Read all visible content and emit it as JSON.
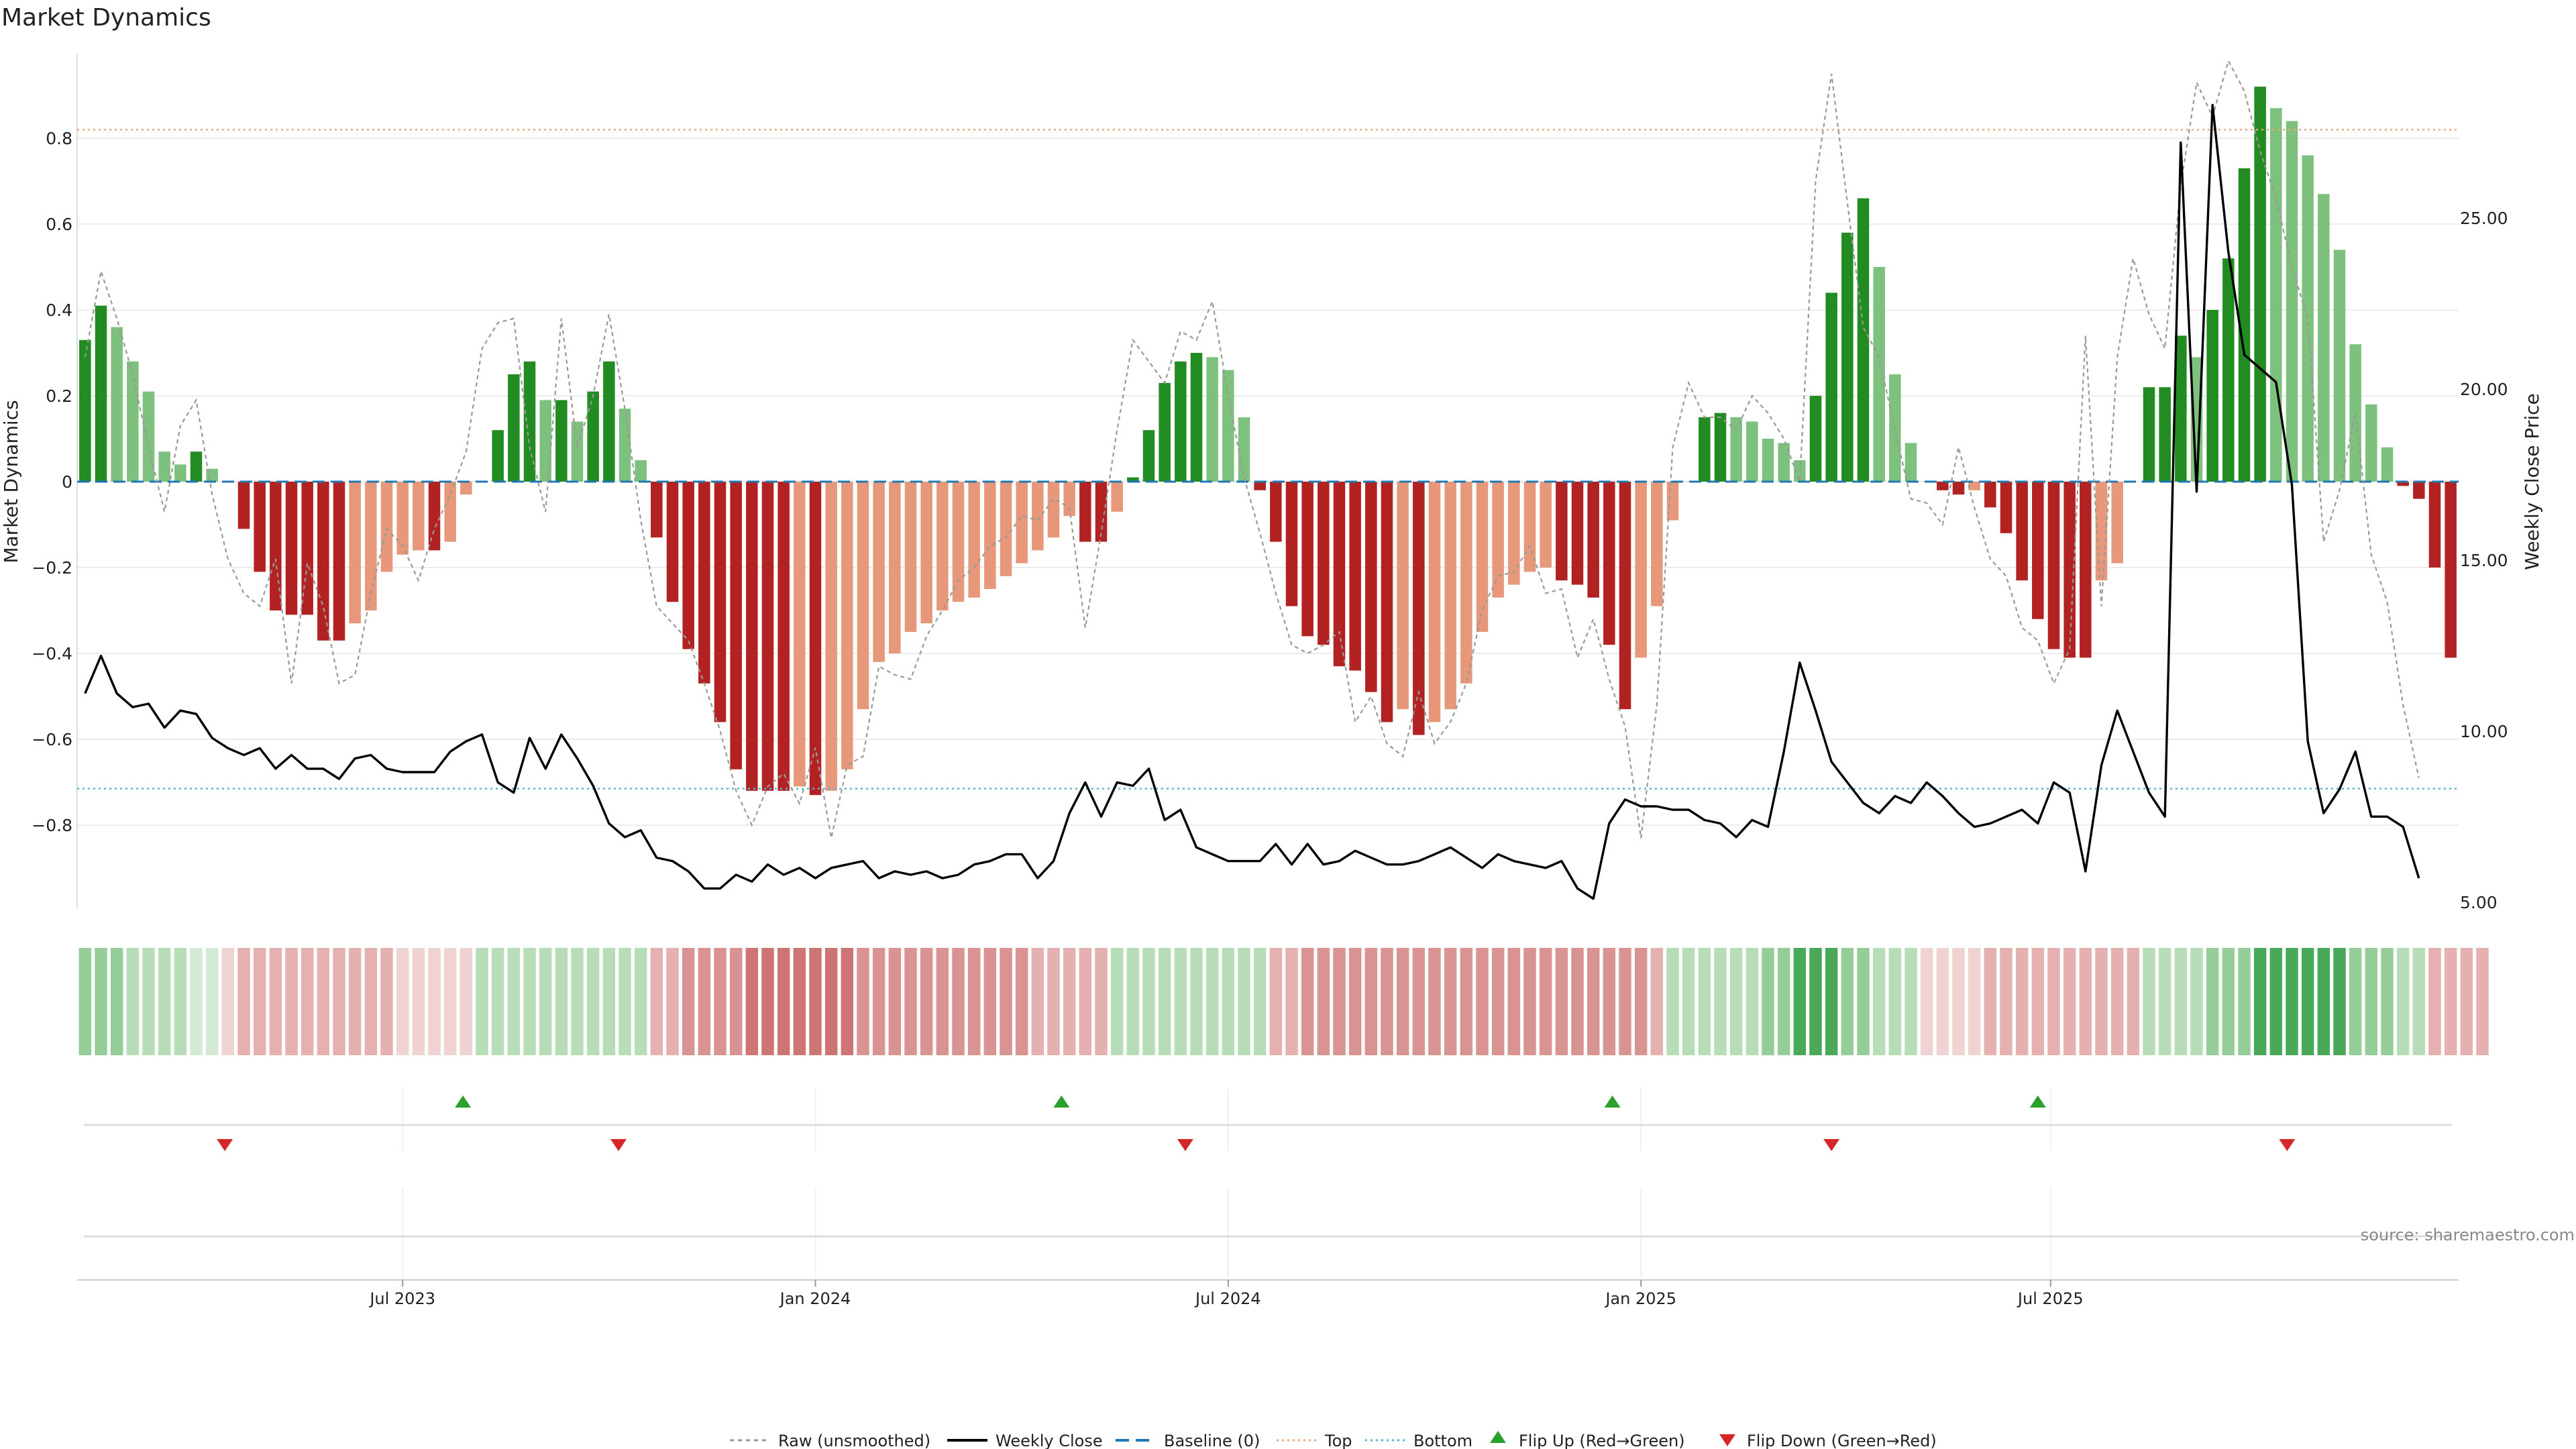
{
  "chart_data": {
    "type": "bar",
    "title": "Market Dynamics",
    "ylabel_left": "Market Dynamics",
    "ylabel_right": "Weekly Close Price",
    "ylim_left": [
      -1.0,
      0.99
    ],
    "ylim_right": [
      4.8,
      29.8
    ],
    "yticks_left": [
      "0.8",
      "0.6",
      "0.4",
      "0.2",
      "0",
      "−0.2",
      "−0.4",
      "−0.6",
      "−0.8"
    ],
    "yticks_right": [
      "25.00",
      "20.00",
      "15.00",
      "10.00",
      "5.00"
    ],
    "x_date_labels": [
      "Jul 2023",
      "Jan 2024",
      "Jul 2024",
      "Jan 2025",
      "Jul 2025"
    ],
    "x_date_label_weeks": [
      20.5,
      46.5,
      72.5,
      98.5,
      124.3
    ],
    "top_level": 0.82,
    "bottom_level": -0.715,
    "baseline": 0,
    "bars": [
      0.33,
      0.41,
      0.36,
      0.28,
      0.21,
      0.07,
      0.04,
      0.07,
      0.03,
      0,
      -0.11,
      -0.21,
      -0.3,
      -0.31,
      -0.31,
      -0.37,
      -0.37,
      -0.33,
      -0.3,
      -0.21,
      -0.17,
      -0.16,
      -0.16,
      -0.14,
      -0.03,
      0,
      0.12,
      0.25,
      0.28,
      0.19,
      0.19,
      0.14,
      0.21,
      0.28,
      0.17,
      0.05,
      -0.13,
      -0.28,
      -0.39,
      -0.47,
      -0.56,
      -0.67,
      -0.72,
      -0.72,
      -0.72,
      -0.71,
      -0.73,
      -0.72,
      -0.67,
      -0.53,
      -0.42,
      -0.4,
      -0.35,
      -0.33,
      -0.3,
      -0.28,
      -0.27,
      -0.25,
      -0.22,
      -0.19,
      -0.16,
      -0.13,
      -0.08,
      -0.14,
      -0.14,
      -0.07,
      0.01,
      0.12,
      0.23,
      0.28,
      0.3,
      0.29,
      0.26,
      0.15,
      -0.02,
      -0.14,
      -0.29,
      -0.36,
      -0.38,
      -0.43,
      -0.44,
      -0.49,
      -0.56,
      -0.53,
      -0.59,
      -0.56,
      -0.53,
      -0.47,
      -0.35,
      -0.27,
      -0.24,
      -0.21,
      -0.2,
      -0.23,
      -0.24,
      -0.27,
      -0.38,
      -0.53,
      -0.41,
      -0.29,
      -0.09,
      0,
      0.15,
      0.16,
      0.15,
      0.14,
      0.1,
      0.09,
      0.05,
      0.2,
      0.44,
      0.58,
      0.66,
      0.5,
      0.25,
      0.09,
      0,
      -0.02,
      -0.03,
      -0.02,
      -0.06,
      -0.12,
      -0.23,
      -0.32,
      -0.39,
      -0.41,
      -0.41,
      -0.23,
      -0.19,
      0,
      0.22,
      0.22,
      0.34,
      0.29,
      0.4,
      0.52,
      0.73,
      0.92,
      0.87,
      0.84,
      0.76,
      0.67,
      0.54,
      0.32,
      0.18,
      0.08,
      -0.01,
      -0.04,
      -0.2,
      -0.41
    ],
    "raw_unsmoothed": [
      0.29,
      0.49,
      0.38,
      0.25,
      0.08,
      -0.07,
      0.13,
      0.19,
      -0.03,
      -0.18,
      -0.26,
      -0.29,
      -0.18,
      -0.47,
      -0.19,
      -0.29,
      -0.47,
      -0.45,
      -0.26,
      -0.11,
      -0.15,
      -0.23,
      -0.11,
      -0.03,
      0.07,
      0.31,
      0.37,
      0.38,
      0.08,
      -0.07,
      0.38,
      0.08,
      0.2,
      0.39,
      0.17,
      -0.09,
      -0.29,
      -0.33,
      -0.37,
      -0.47,
      -0.58,
      -0.72,
      -0.8,
      -0.71,
      -0.68,
      -0.75,
      -0.62,
      -0.83,
      -0.66,
      -0.64,
      -0.43,
      -0.45,
      -0.46,
      -0.36,
      -0.3,
      -0.23,
      -0.2,
      -0.15,
      -0.13,
      -0.08,
      -0.09,
      -0.04,
      -0.06,
      -0.34,
      -0.12,
      0.12,
      0.33,
      0.28,
      0.23,
      0.35,
      0.33,
      0.42,
      0.2,
      0.01,
      -0.12,
      -0.26,
      -0.38,
      -0.4,
      -0.38,
      -0.35,
      -0.56,
      -0.5,
      -0.61,
      -0.64,
      -0.49,
      -0.61,
      -0.56,
      -0.47,
      -0.3,
      -0.22,
      -0.21,
      -0.15,
      -0.26,
      -0.25,
      -0.41,
      -0.32,
      -0.46,
      -0.57,
      -0.83,
      -0.52,
      0.08,
      0.23,
      0.15,
      0.15,
      0.12,
      0.2,
      0.16,
      0.1,
      0.0,
      0.7,
      0.95,
      0.65,
      0.36,
      0.29,
      0.12,
      -0.04,
      -0.05,
      -0.1,
      0.08,
      -0.06,
      -0.18,
      -0.22,
      -0.34,
      -0.37,
      -0.47,
      -0.39,
      0.34,
      -0.29,
      0.29,
      0.52,
      0.39,
      0.31,
      0.69,
      0.93,
      0.85,
      0.98,
      0.91,
      0.77,
      0.66,
      0.5,
      0.38,
      -0.14,
      -0.02,
      0.16,
      -0.17,
      -0.28,
      -0.52,
      -0.69
    ],
    "weekly_close": [
      11.1,
      12.2,
      11.1,
      10.7,
      10.8,
      10.1,
      10.6,
      10.5,
      9.8,
      9.5,
      9.3,
      9.5,
      8.9,
      9.3,
      8.9,
      8.9,
      8.6,
      9.2,
      9.3,
      8.9,
      8.8,
      8.8,
      8.8,
      9.4,
      9.7,
      9.9,
      8.5,
      8.2,
      9.8,
      8.9,
      9.9,
      9.2,
      8.4,
      7.3,
      6.9,
      7.1,
      6.3,
      6.2,
      5.9,
      5.4,
      5.4,
      5.8,
      5.6,
      6.1,
      5.8,
      6.0,
      5.7,
      6.0,
      6.1,
      6.2,
      5.7,
      5.9,
      5.8,
      5.9,
      5.7,
      5.8,
      6.1,
      6.2,
      6.4,
      6.4,
      5.7,
      6.2,
      7.6,
      8.5,
      7.5,
      8.5,
      8.4,
      8.9,
      7.4,
      7.7,
      6.6,
      6.4,
      6.2,
      6.2,
      6.2,
      6.7,
      6.1,
      6.7,
      6.1,
      6.2,
      6.5,
      6.3,
      6.1,
      6.1,
      6.2,
      6.4,
      6.6,
      6.3,
      6.0,
      6.4,
      6.2,
      6.1,
      6.0,
      6.2,
      5.4,
      5.1,
      7.3,
      8.0,
      7.8,
      7.8,
      7.7,
      7.7,
      7.4,
      7.3,
      6.9,
      7.4,
      7.2,
      9.4,
      12.0,
      10.6,
      9.1,
      8.5,
      7.9,
      7.6,
      8.1,
      7.9,
      8.5,
      8.1,
      7.6,
      7.2,
      7.3,
      7.5,
      7.7,
      7.3,
      8.5,
      8.2,
      5.9,
      9.0,
      10.6,
      9.4,
      8.2,
      7.5,
      27.2,
      17.0,
      28.3,
      24.0,
      21.0,
      20.6,
      20.2,
      17.2,
      9.7,
      7.6,
      8.3,
      9.4,
      7.5,
      7.5,
      7.2,
      5.7
    ],
    "regime_strip": [
      "g2",
      "g2",
      "g2",
      "g1",
      "g1",
      "g1",
      "g1",
      "g0",
      "g0",
      "r0",
      "r1",
      "r1",
      "r1",
      "r1",
      "r1",
      "r1",
      "r1",
      "r1",
      "r1",
      "r1",
      "r0",
      "r0",
      "r0",
      "r0",
      "r0",
      "g1",
      "g1",
      "g1",
      "g1",
      "g1",
      "g1",
      "g1",
      "g1",
      "g1",
      "g1",
      "g1",
      "r1",
      "r1",
      "r2",
      "r2",
      "r2",
      "r2",
      "r3",
      "r3",
      "r3",
      "r3",
      "r3",
      "r3",
      "r3",
      "r2",
      "r2",
      "r2",
      "r2",
      "r2",
      "r2",
      "r2",
      "r2",
      "r2",
      "r2",
      "r2",
      "r1",
      "r1",
      "r1",
      "r1",
      "r1",
      "g1",
      "g1",
      "g1",
      "g1",
      "g1",
      "g1",
      "g1",
      "g1",
      "g1",
      "g1",
      "r1",
      "r1",
      "r2",
      "r2",
      "r2",
      "r2",
      "r2",
      "r2",
      "r2",
      "r2",
      "r2",
      "r2",
      "r2",
      "r2",
      "r2",
      "r2",
      "r2",
      "r2",
      "r2",
      "r2",
      "r2",
      "r2",
      "r2",
      "r2",
      "r1",
      "g1",
      "g1",
      "g1",
      "g1",
      "g1",
      "g1",
      "g2",
      "g2",
      "g3",
      "g3",
      "g3",
      "g2",
      "g2",
      "g1",
      "g1",
      "g1",
      "r0",
      "r0",
      "r0",
      "r0",
      "r1",
      "r1",
      "r1",
      "r1",
      "r1",
      "r1",
      "r1",
      "r1",
      "r1",
      "r1",
      "g1",
      "g1",
      "g1",
      "g1",
      "g2",
      "g2",
      "g2",
      "g3",
      "g3",
      "g3",
      "g3",
      "g3",
      "g3",
      "g2",
      "g2",
      "g2",
      "g1",
      "g1",
      "r1",
      "r1",
      "r1",
      "r1"
    ],
    "flip_up_weeks": [
      24.3,
      62.0,
      96.7,
      123.5
    ],
    "flip_down_weeks": [
      9.3,
      34.1,
      69.8,
      110.5,
      139.2
    ],
    "colors": {
      "strong_up": "#228b22",
      "weak_up": "#7ec07e",
      "strong_down": "#b22222",
      "weak_down": "#e8987a",
      "raw_line": "#999999",
      "close_line": "#000000",
      "baseline": "#1f77b4",
      "top": "#f0a87a",
      "bottom": "#5ab4d6",
      "flip_up": "#2ca02c",
      "flip_down": "#d62728",
      "regime": {
        "g0": "#d4ead5",
        "g1": "#b7dcb8",
        "g2": "#95cd98",
        "g3": "#49a85a",
        "r0": "#efd3d3",
        "r1": "#e4b0b0",
        "r2": "#d99393",
        "r3": "#cd7575"
      }
    },
    "legend": {
      "raw": "Raw (unsmoothed)",
      "close": "Weekly Close",
      "baseline": "Baseline (0)",
      "top": "Top",
      "bottom": "Bottom",
      "flip_up": "Flip Up (Red→Green)",
      "flip_down": "Flip Down (Green→Red)"
    },
    "source": "source: sharemaestro.com"
  }
}
